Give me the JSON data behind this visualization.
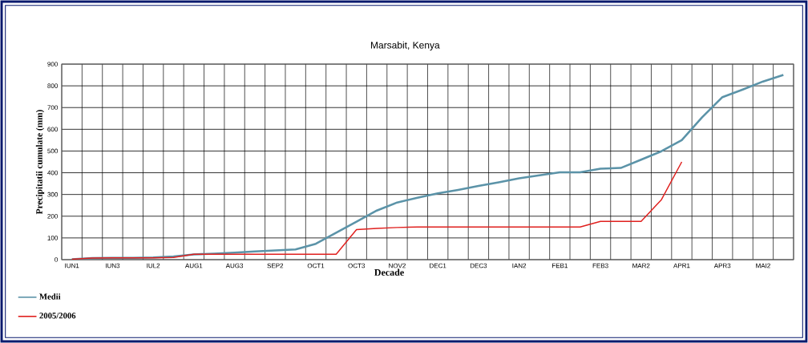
{
  "chart_data": {
    "type": "line",
    "title": "Marsabit, Kenya",
    "xlabel": "Decade",
    "ylabel": "Precipitatii cumulate (mm)",
    "categories": [
      "IUN1",
      null,
      "IUN3",
      null,
      "IUL2",
      null,
      "AUG1",
      null,
      "AUG3",
      null,
      "SEP2",
      null,
      "OCT1",
      null,
      "OCT3",
      null,
      "NOV2",
      null,
      "DEC1",
      null,
      "DEC3",
      null,
      "IAN2",
      null,
      "FEB1",
      null,
      "FEB3",
      null,
      "MAR2",
      null,
      "APR1",
      null,
      "APR3",
      null,
      "MAI2",
      null
    ],
    "series": [
      {
        "name": "Medii",
        "color": "#5b93a8",
        "values": [
          2,
          7,
          8,
          8,
          10,
          15,
          24,
          28,
          32,
          38,
          42,
          47,
          73,
          124,
          175,
          226,
          263,
          285,
          305,
          321,
          339,
          356,
          374,
          388,
          402,
          402,
          419,
          422,
          460,
          499,
          550,
          655,
          748,
          783,
          820,
          850
        ]
      },
      {
        "name": "2005/2006",
        "color": "#e0201e",
        "values": [
          2,
          7,
          8,
          8,
          8,
          10,
          25,
          25,
          25,
          25,
          25,
          25,
          25,
          25,
          138,
          144,
          148,
          150,
          150,
          150,
          150,
          150,
          150,
          150,
          150,
          150,
          176,
          176,
          176,
          276,
          450,
          null,
          null,
          null,
          null,
          null
        ]
      }
    ],
    "ylim": [
      0,
      900
    ],
    "yticks": [
      0,
      100,
      200,
      300,
      400,
      500,
      600,
      700,
      800,
      900
    ],
    "grid": true,
    "legend": "bottom left",
    "marker": "none",
    "line_style": "solid"
  }
}
